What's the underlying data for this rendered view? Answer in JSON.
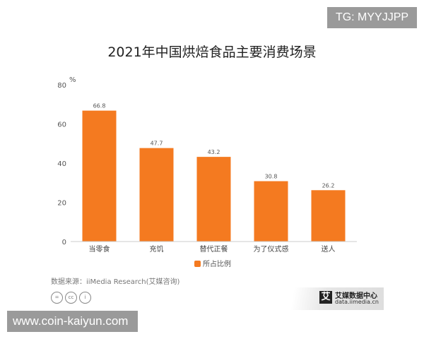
{
  "chart_data": {
    "type": "bar",
    "title": "2021年中国烘焙食品主要消费场景",
    "ylabel": "%",
    "xlabel": "",
    "ylim": [
      0,
      80
    ],
    "yticks": [
      0,
      20,
      40,
      60,
      80
    ],
    "categories": [
      "当零食",
      "充饥",
      "替代正餐",
      "为了仪式感",
      "送人"
    ],
    "series": [
      {
        "name": "所占比例",
        "values": [
          66.8,
          47.7,
          43.2,
          30.8,
          26.2
        ]
      }
    ],
    "legend_position": "bottom",
    "color": "#f47a20"
  },
  "source": "数据来源：iiMedia Research(艾媒咨询)",
  "logo": {
    "mark": "艾",
    "name": "艾媒数据中心",
    "url": "data.iimedia.cn"
  },
  "watermarks": {
    "top": "TG: MYYJJPP",
    "bottom": "www.coin-kaiyun.com"
  },
  "cc_icons": [
    "=",
    "cc",
    "i"
  ]
}
